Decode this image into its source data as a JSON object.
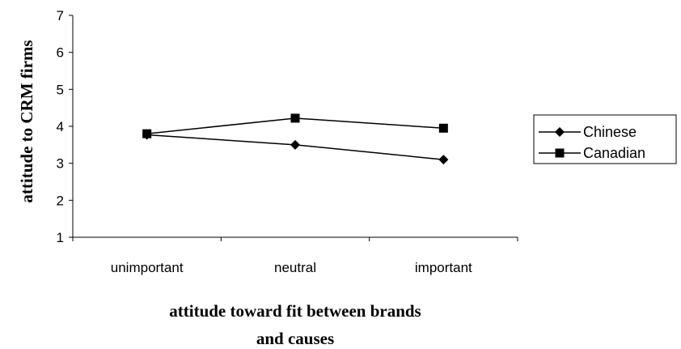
{
  "chart_data": {
    "type": "line",
    "categories": [
      "unimportant",
      "neutral",
      "important"
    ],
    "series": [
      {
        "name": "Chinese",
        "marker": "diamond",
        "values": [
          3.77,
          3.5,
          3.1
        ]
      },
      {
        "name": "Canadian",
        "marker": "square",
        "values": [
          3.8,
          4.22,
          3.95
        ]
      }
    ],
    "title": "",
    "xlabel": [
      "attitude toward fit between brands",
      "and causes"
    ],
    "ylabel": "attitude to CRM firms",
    "ylim": [
      1,
      7
    ],
    "yticks": [
      1,
      2,
      3,
      4,
      5,
      6,
      7
    ],
    "grid": false,
    "legend": "right",
    "colors": {
      "line": "#000000",
      "marker": "#000000"
    }
  }
}
